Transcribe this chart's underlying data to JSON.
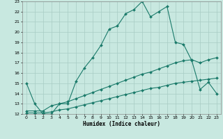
{
  "xlabel": "Humidex (Indice chaleur)",
  "bg_color": "#c8e8e0",
  "grid_color": "#a8ccc4",
  "line_color": "#1a7a6a",
  "xlim": [
    -0.5,
    23.5
  ],
  "ylim": [
    12,
    23
  ],
  "xticks": [
    0,
    1,
    2,
    3,
    4,
    5,
    6,
    7,
    8,
    9,
    10,
    11,
    12,
    13,
    14,
    15,
    16,
    17,
    18,
    19,
    20,
    21,
    22,
    23
  ],
  "yticks": [
    12,
    13,
    14,
    15,
    16,
    17,
    18,
    19,
    20,
    21,
    22,
    23
  ],
  "line1_x": [
    0,
    1,
    2,
    3,
    4,
    5,
    6,
    7,
    8,
    9,
    10,
    11,
    12,
    13,
    14,
    15,
    16,
    17,
    18,
    19,
    20,
    21,
    22,
    23
  ],
  "line1_y": [
    15.0,
    13.0,
    12.0,
    12.0,
    13.0,
    13.0,
    15.2,
    16.5,
    17.5,
    18.7,
    20.3,
    20.6,
    21.8,
    22.2,
    23.0,
    21.5,
    22.0,
    22.5,
    19.0,
    18.8,
    17.2,
    14.4,
    15.1,
    14.0
  ],
  "line2_x": [
    0,
    1,
    2,
    3,
    4,
    5,
    6,
    7,
    8,
    9,
    10,
    11,
    12,
    13,
    14,
    15,
    16,
    17,
    18,
    19,
    20,
    21,
    22,
    23
  ],
  "line2_y": [
    12.3,
    12.3,
    12.3,
    12.8,
    13.0,
    13.2,
    13.5,
    13.8,
    14.1,
    14.4,
    14.7,
    15.0,
    15.3,
    15.6,
    15.9,
    16.1,
    16.4,
    16.7,
    17.0,
    17.2,
    17.3,
    17.0,
    17.3,
    17.5
  ],
  "line3_x": [
    0,
    1,
    2,
    3,
    4,
    5,
    6,
    7,
    8,
    9,
    10,
    11,
    12,
    13,
    14,
    15,
    16,
    17,
    18,
    19,
    20,
    21,
    22,
    23
  ],
  "line3_y": [
    12.1,
    12.1,
    12.1,
    12.2,
    12.4,
    12.5,
    12.7,
    12.9,
    13.1,
    13.3,
    13.5,
    13.7,
    13.9,
    14.1,
    14.3,
    14.5,
    14.6,
    14.8,
    15.0,
    15.1,
    15.2,
    15.3,
    15.4,
    15.5
  ]
}
